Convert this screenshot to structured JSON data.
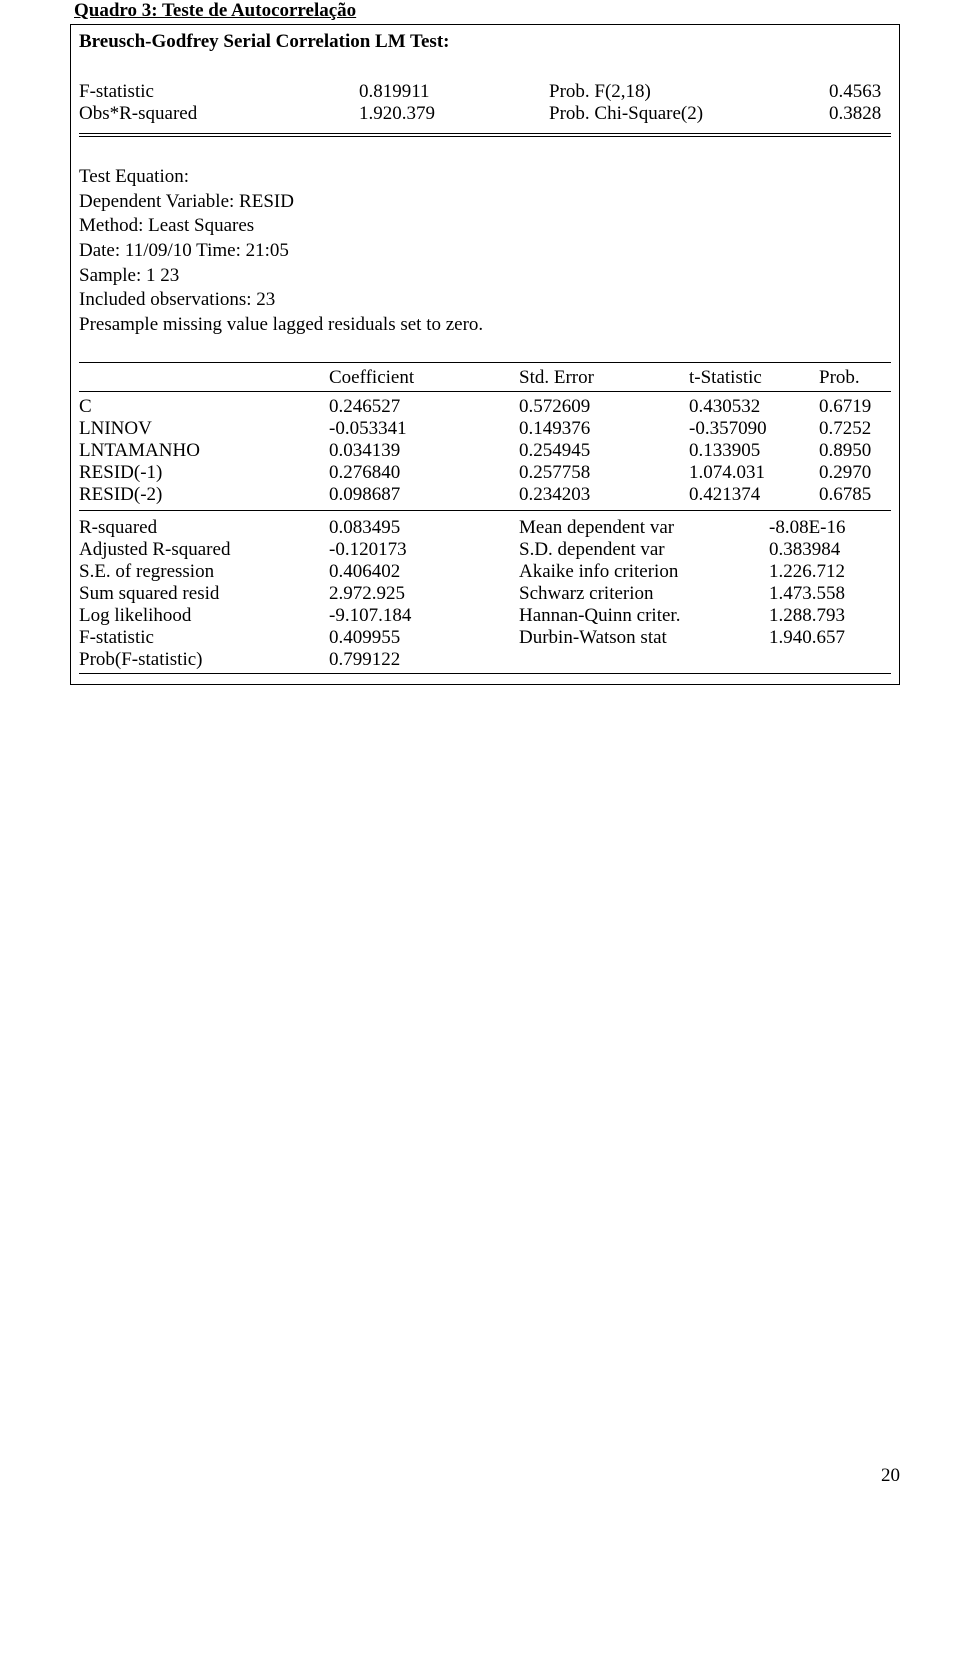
{
  "title": "Quadro 3: Teste de Autocorrelação",
  "subtitle": "Breusch-Godfrey Serial Correlation LM Test:",
  "top": {
    "r1c1": "F-statistic",
    "r1c2": "0.819911",
    "r1c3": "Prob. F(2,18)",
    "r1c4": "0.4563",
    "r2c1": "Obs*R-squared",
    "r2c2": "1.920.379",
    "r2c3": "Prob. Chi-Square(2)",
    "r2c4": "0.3828"
  },
  "meta": {
    "l1": "Test Equation:",
    "l2": "Dependent Variable: RESID",
    "l3": "Method: Least Squares",
    "l4": "Date: 11/09/10   Time: 21:05",
    "l5": "Sample: 1 23",
    "l6": "Included observations: 23",
    "l7": "Presample missing value lagged residuals set to zero."
  },
  "headers": {
    "h2": "Coefficient",
    "h3": "Std. Error",
    "h4": "t-Statistic",
    "h5": "Prob."
  },
  "coef": {
    "r1": {
      "c1": "C",
      "c2": "0.246527",
      "c3": "0.572609",
      "c4": "0.430532",
      "c5": "0.6719"
    },
    "r2": {
      "c1": "LNINOV",
      "c2": "-0.053341",
      "c3": "0.149376",
      "c4": "-0.357090",
      "c5": "0.7252"
    },
    "r3": {
      "c1": "LNTAMANHO",
      "c2": "0.034139",
      "c3": "0.254945",
      "c4": "0.133905",
      "c5": "0.8950"
    },
    "r4": {
      "c1": "RESID(-1)",
      "c2": "0.276840",
      "c3": "0.257758",
      "c4": "1.074.031",
      "c5": "0.2970"
    },
    "r5": {
      "c1": "RESID(-2)",
      "c2": "0.098687",
      "c3": "0.234203",
      "c4": "0.421374",
      "c5": "0.6785"
    }
  },
  "stats": {
    "r1": {
      "s1": "R-squared",
      "s2": "0.083495",
      "s3": "Mean dependent var",
      "s4": "-8.08E-16"
    },
    "r2": {
      "s1": "Adjusted R-squared",
      "s2": "-0.120173",
      "s3": "S.D. dependent var",
      "s4": "0.383984"
    },
    "r3": {
      "s1": "S.E. of regression",
      "s2": "0.406402",
      "s3": "Akaike info criterion",
      "s4": "1.226.712"
    },
    "r4": {
      "s1": "Sum squared resid",
      "s2": "2.972.925",
      "s3": "Schwarz criterion",
      "s4": "1.473.558"
    },
    "r5": {
      "s1": "Log likelihood",
      "s2": "-9.107.184",
      "s3": "Hannan-Quinn criter.",
      "s4": "1.288.793"
    },
    "r6": {
      "s1": "F-statistic",
      "s2": "0.409955",
      "s3": "Durbin-Watson stat",
      "s4": "1.940.657"
    },
    "r7": {
      "s1": "Prob(F-statistic)",
      "s2": "0.799122",
      "s3": "",
      "s4": ""
    }
  },
  "pageNumber": "20",
  "colors": {
    "text": "#000000",
    "background": "#ffffff",
    "border": "#000000"
  },
  "fonts": {
    "family": "Times New Roman",
    "size_pt": 14
  }
}
